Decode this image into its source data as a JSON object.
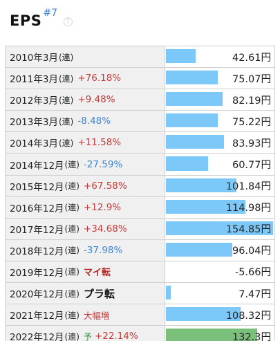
{
  "section": {
    "title": "EPS",
    "note": "#7",
    "help_icon": "?"
  },
  "colors": {
    "bar_actual": "#7cc8f8",
    "bar_forecast": "#7ac07a",
    "positive": "#c43b3b",
    "negative": "#3d86d8"
  },
  "rows": [
    {
      "period": "2010年3月",
      "type": "(連)",
      "forecast": "",
      "change": "",
      "change_kind": "none",
      "value": "42.61円",
      "eps": 42.61
    },
    {
      "period": "2011年3月",
      "type": "(連)",
      "forecast": "",
      "change": "+76.18%",
      "change_kind": "pos",
      "value": "75.07円",
      "eps": 75.07
    },
    {
      "period": "2012年3月",
      "type": "(連)",
      "forecast": "",
      "change": "+9.48%",
      "change_kind": "pos",
      "value": "82.19円",
      "eps": 82.19
    },
    {
      "period": "2013年3月",
      "type": "(連)",
      "forecast": "",
      "change": "-8.48%",
      "change_kind": "neg",
      "value": "75.22円",
      "eps": 75.22
    },
    {
      "period": "2014年3月",
      "type": "(連)",
      "forecast": "",
      "change": "+11.58%",
      "change_kind": "pos",
      "value": "83.93円",
      "eps": 83.93
    },
    {
      "period": "2014年12月",
      "type": "(連)",
      "forecast": "",
      "change": "-27.59%",
      "change_kind": "neg",
      "value": "60.77円",
      "eps": 60.77
    },
    {
      "period": "2015年12月",
      "type": "(連)",
      "forecast": "",
      "change": "+67.58%",
      "change_kind": "pos",
      "value": "101.84円",
      "eps": 101.84
    },
    {
      "period": "2016年12月",
      "type": "(連)",
      "forecast": "",
      "change": "+12.9%",
      "change_kind": "pos",
      "value": "114.98円",
      "eps": 114.98
    },
    {
      "period": "2017年12月",
      "type": "(連)",
      "forecast": "",
      "change": "+34.68%",
      "change_kind": "pos",
      "value": "154.85円",
      "eps": 154.85
    },
    {
      "period": "2018年12月",
      "type": "(連)",
      "forecast": "",
      "change": "-37.98%",
      "change_kind": "neg",
      "value": "96.04円",
      "eps": 96.04
    },
    {
      "period": "2019年12月",
      "type": "(連)",
      "forecast": "",
      "change": "マイ転",
      "change_kind": "turn-dark",
      "value": "-5.66円",
      "eps": -5.66
    },
    {
      "period": "2020年12月",
      "type": "(連)",
      "forecast": "",
      "change": "プラ転",
      "change_kind": "turn-black",
      "value": "7.47円",
      "eps": 7.47
    },
    {
      "period": "2021年12月",
      "type": "(連)",
      "forecast": "",
      "change": "大幅増",
      "change_kind": "big",
      "value": "108.32円",
      "eps": 108.32
    },
    {
      "period": "2022年12月",
      "type": "(連)",
      "forecast": "予",
      "change": "+22.14%",
      "change_kind": "pos",
      "value": "132.3円",
      "eps": 132.3
    }
  ],
  "scale_max": 154.85
}
